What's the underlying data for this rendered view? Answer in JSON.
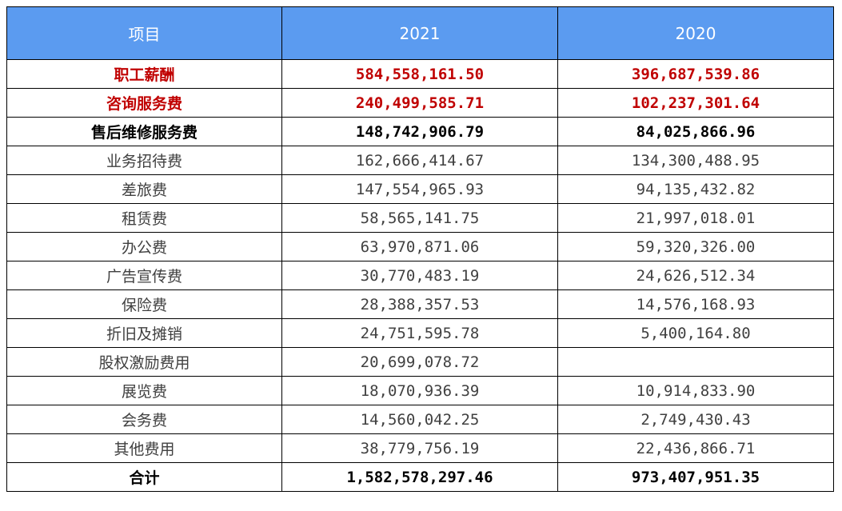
{
  "header": {
    "item": "项目",
    "year1": "2021",
    "year2": "2020"
  },
  "rows": [
    {
      "label": "职工薪酬",
      "v2021": "584,558,161.50",
      "v2020": "396,687,539.86",
      "style": "red"
    },
    {
      "label": "咨询服务费",
      "v2021": "240,499,585.71",
      "v2020": "102,237,301.64",
      "style": "red"
    },
    {
      "label": "售后维修服务费",
      "v2021": "148,742,906.79",
      "v2020": "84,025,866.96",
      "style": "bold"
    },
    {
      "label": "业务招待费",
      "v2021": "162,666,414.67",
      "v2020": "134,300,488.95",
      "style": "normal"
    },
    {
      "label": "差旅费",
      "v2021": "147,554,965.93",
      "v2020": "94,135,432.82",
      "style": "normal"
    },
    {
      "label": "租赁费",
      "v2021": "58,565,141.75",
      "v2020": "21,997,018.01",
      "style": "normal"
    },
    {
      "label": "办公费",
      "v2021": "63,970,871.06",
      "v2020": "59,320,326.00",
      "style": "normal"
    },
    {
      "label": "广告宣传费",
      "v2021": "30,770,483.19",
      "v2020": "24,626,512.34",
      "style": "normal"
    },
    {
      "label": "保险费",
      "v2021": "28,388,357.53",
      "v2020": "14,576,168.93",
      "style": "normal"
    },
    {
      "label": "折旧及摊销",
      "v2021": "24,751,595.78",
      "v2020": "5,400,164.80",
      "style": "normal"
    },
    {
      "label": "股权激励费用",
      "v2021": "20,699,078.72",
      "v2020": "",
      "style": "normal"
    },
    {
      "label": "展览费",
      "v2021": "18,070,936.39",
      "v2020": "10,914,833.90",
      "style": "normal"
    },
    {
      "label": "会务费",
      "v2021": "14,560,042.25",
      "v2020": "2,749,430.43",
      "style": "normal"
    },
    {
      "label": "其他费用",
      "v2021": "38,779,756.19",
      "v2020": "22,436,866.71",
      "style": "normal"
    }
  ],
  "total": {
    "label": "合计",
    "v2021": "1,582,578,297.46",
    "v2020": "973,407,951.35"
  },
  "colors": {
    "header_bg": "#5b9bf0",
    "highlight_red": "#c00000",
    "text_gray": "#404040"
  }
}
